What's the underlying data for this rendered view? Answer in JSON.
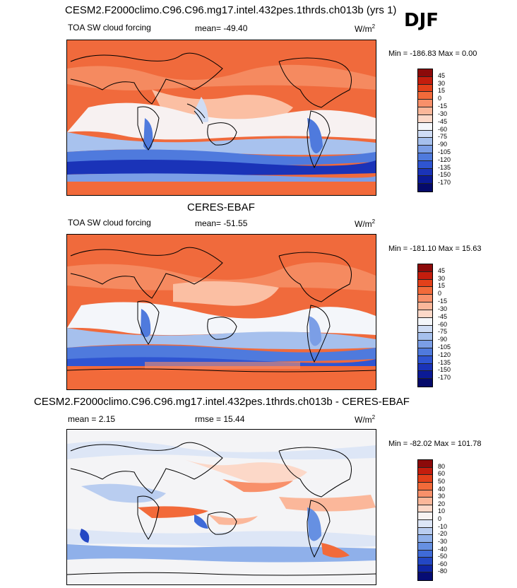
{
  "season": "DJF",
  "panels": [
    {
      "title": "CESM2.F2000climo.C96.C96.mg17.intel.432pes.1thrds.ch013b (yrs 1)",
      "variable": "TOA SW cloud forcing",
      "stat": "mean= -49.40",
      "units": "W/m",
      "units_sup": "2",
      "minmax": "Min = -186.83 Max =   0.00",
      "levels": [
        "45",
        "30",
        "15",
        "0",
        "-15",
        "-30",
        "-45",
        "-60",
        "-75",
        "-90",
        "-105",
        "-120",
        "-135",
        "-150",
        "-170"
      ],
      "colors": [
        "#8c0a0a",
        "#c41d0d",
        "#e3401a",
        "#f26a3a",
        "#f8906a",
        "#fbb79a",
        "#fcd8c8",
        "#f4f6fa",
        "#cfdcf4",
        "#a6c0ed",
        "#7b9ee6",
        "#4f7add",
        "#2f55d2",
        "#1a33b8",
        "#0b1a96",
        "#050a6a"
      ]
    },
    {
      "title": "CERES-EBAF",
      "variable": "TOA SW cloud forcing",
      "stat": "mean= -51.55",
      "units": "W/m",
      "units_sup": "2",
      "minmax": "Min = -181.10 Max =  15.63",
      "levels": [
        "45",
        "30",
        "15",
        "0",
        "-15",
        "-30",
        "-45",
        "-60",
        "-75",
        "-90",
        "-105",
        "-120",
        "-135",
        "-150",
        "-170"
      ],
      "colors": [
        "#8c0a0a",
        "#c41d0d",
        "#e3401a",
        "#f26a3a",
        "#f8906a",
        "#fbb79a",
        "#fcd8c8",
        "#f4f6fa",
        "#cfdcf4",
        "#a6c0ed",
        "#7b9ee6",
        "#4f7add",
        "#2f55d2",
        "#1a33b8",
        "#0b1a96",
        "#050a6a"
      ]
    },
    {
      "title": "CESM2.F2000climo.C96.C96.mg17.intel.432pes.1thrds.ch013b - CERES-EBAF",
      "variable": "mean =  2.15",
      "stat": "rmse =  15.44",
      "units": "W/m",
      "units_sup": "2",
      "minmax": "Min = -82.02 Max = 101.78",
      "levels": [
        "80",
        "60",
        "50",
        "40",
        "30",
        "20",
        "10",
        "0",
        "-10",
        "-20",
        "-30",
        "-40",
        "-50",
        "-60",
        "-80"
      ],
      "colors": [
        "#8c0a0a",
        "#c41d0d",
        "#e3401a",
        "#f26a3a",
        "#f8906a",
        "#fbb79a",
        "#fcd8c8",
        "#f7f3f2",
        "#dde6f6",
        "#b9cdf0",
        "#8fb0ea",
        "#6690e2",
        "#3f6bd8",
        "#2347c4",
        "#0f25a4",
        "#060c74"
      ]
    }
  ]
}
